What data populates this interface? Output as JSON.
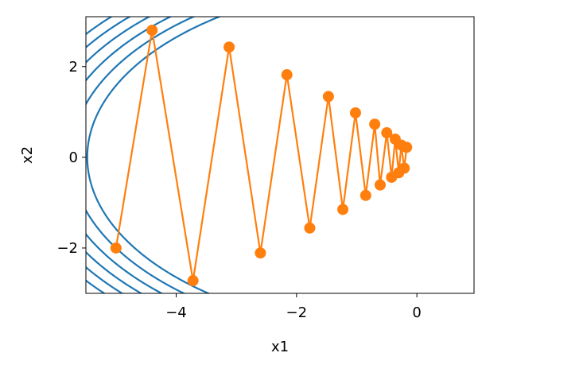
{
  "chart_data": {
    "type": "line",
    "title": "",
    "xlabel": "x1",
    "ylabel": "x2",
    "xlim": [
      -5.5,
      0.95
    ],
    "ylim": [
      -3.0,
      3.1
    ],
    "xticks": [
      -4,
      -2,
      0
    ],
    "yticks": [
      -2,
      0,
      2
    ],
    "xtick_labels": [
      "−4",
      "−2",
      "0"
    ],
    "ytick_labels": [
      "−2",
      "0",
      "2"
    ],
    "grid": false,
    "series": [
      {
        "kind": "trajectory",
        "color": "#ff7f0e",
        "marker": "circle",
        "x": [
          -5.0,
          -4.4,
          -3.72,
          -3.12,
          -2.6,
          -2.16,
          -1.78,
          -1.47,
          -1.23,
          -1.02,
          -0.85,
          -0.7,
          -0.61,
          -0.5,
          -0.42,
          -0.36,
          -0.3,
          -0.26,
          -0.21,
          -0.17
        ],
        "y": [
          -2.0,
          2.8,
          -2.72,
          2.43,
          -2.11,
          1.82,
          -1.56,
          1.34,
          -1.15,
          0.98,
          -0.84,
          0.73,
          -0.61,
          0.54,
          -0.44,
          0.4,
          -0.34,
          0.27,
          -0.24,
          0.22
        ]
      }
    ],
    "contours": {
      "kind": "contour",
      "color": "#1f77b4",
      "function": "x1^2 + 2*x2^2",
      "levels": [
        30.0,
        33.0,
        36.0,
        39.0,
        42.0,
        45.0
      ]
    }
  }
}
